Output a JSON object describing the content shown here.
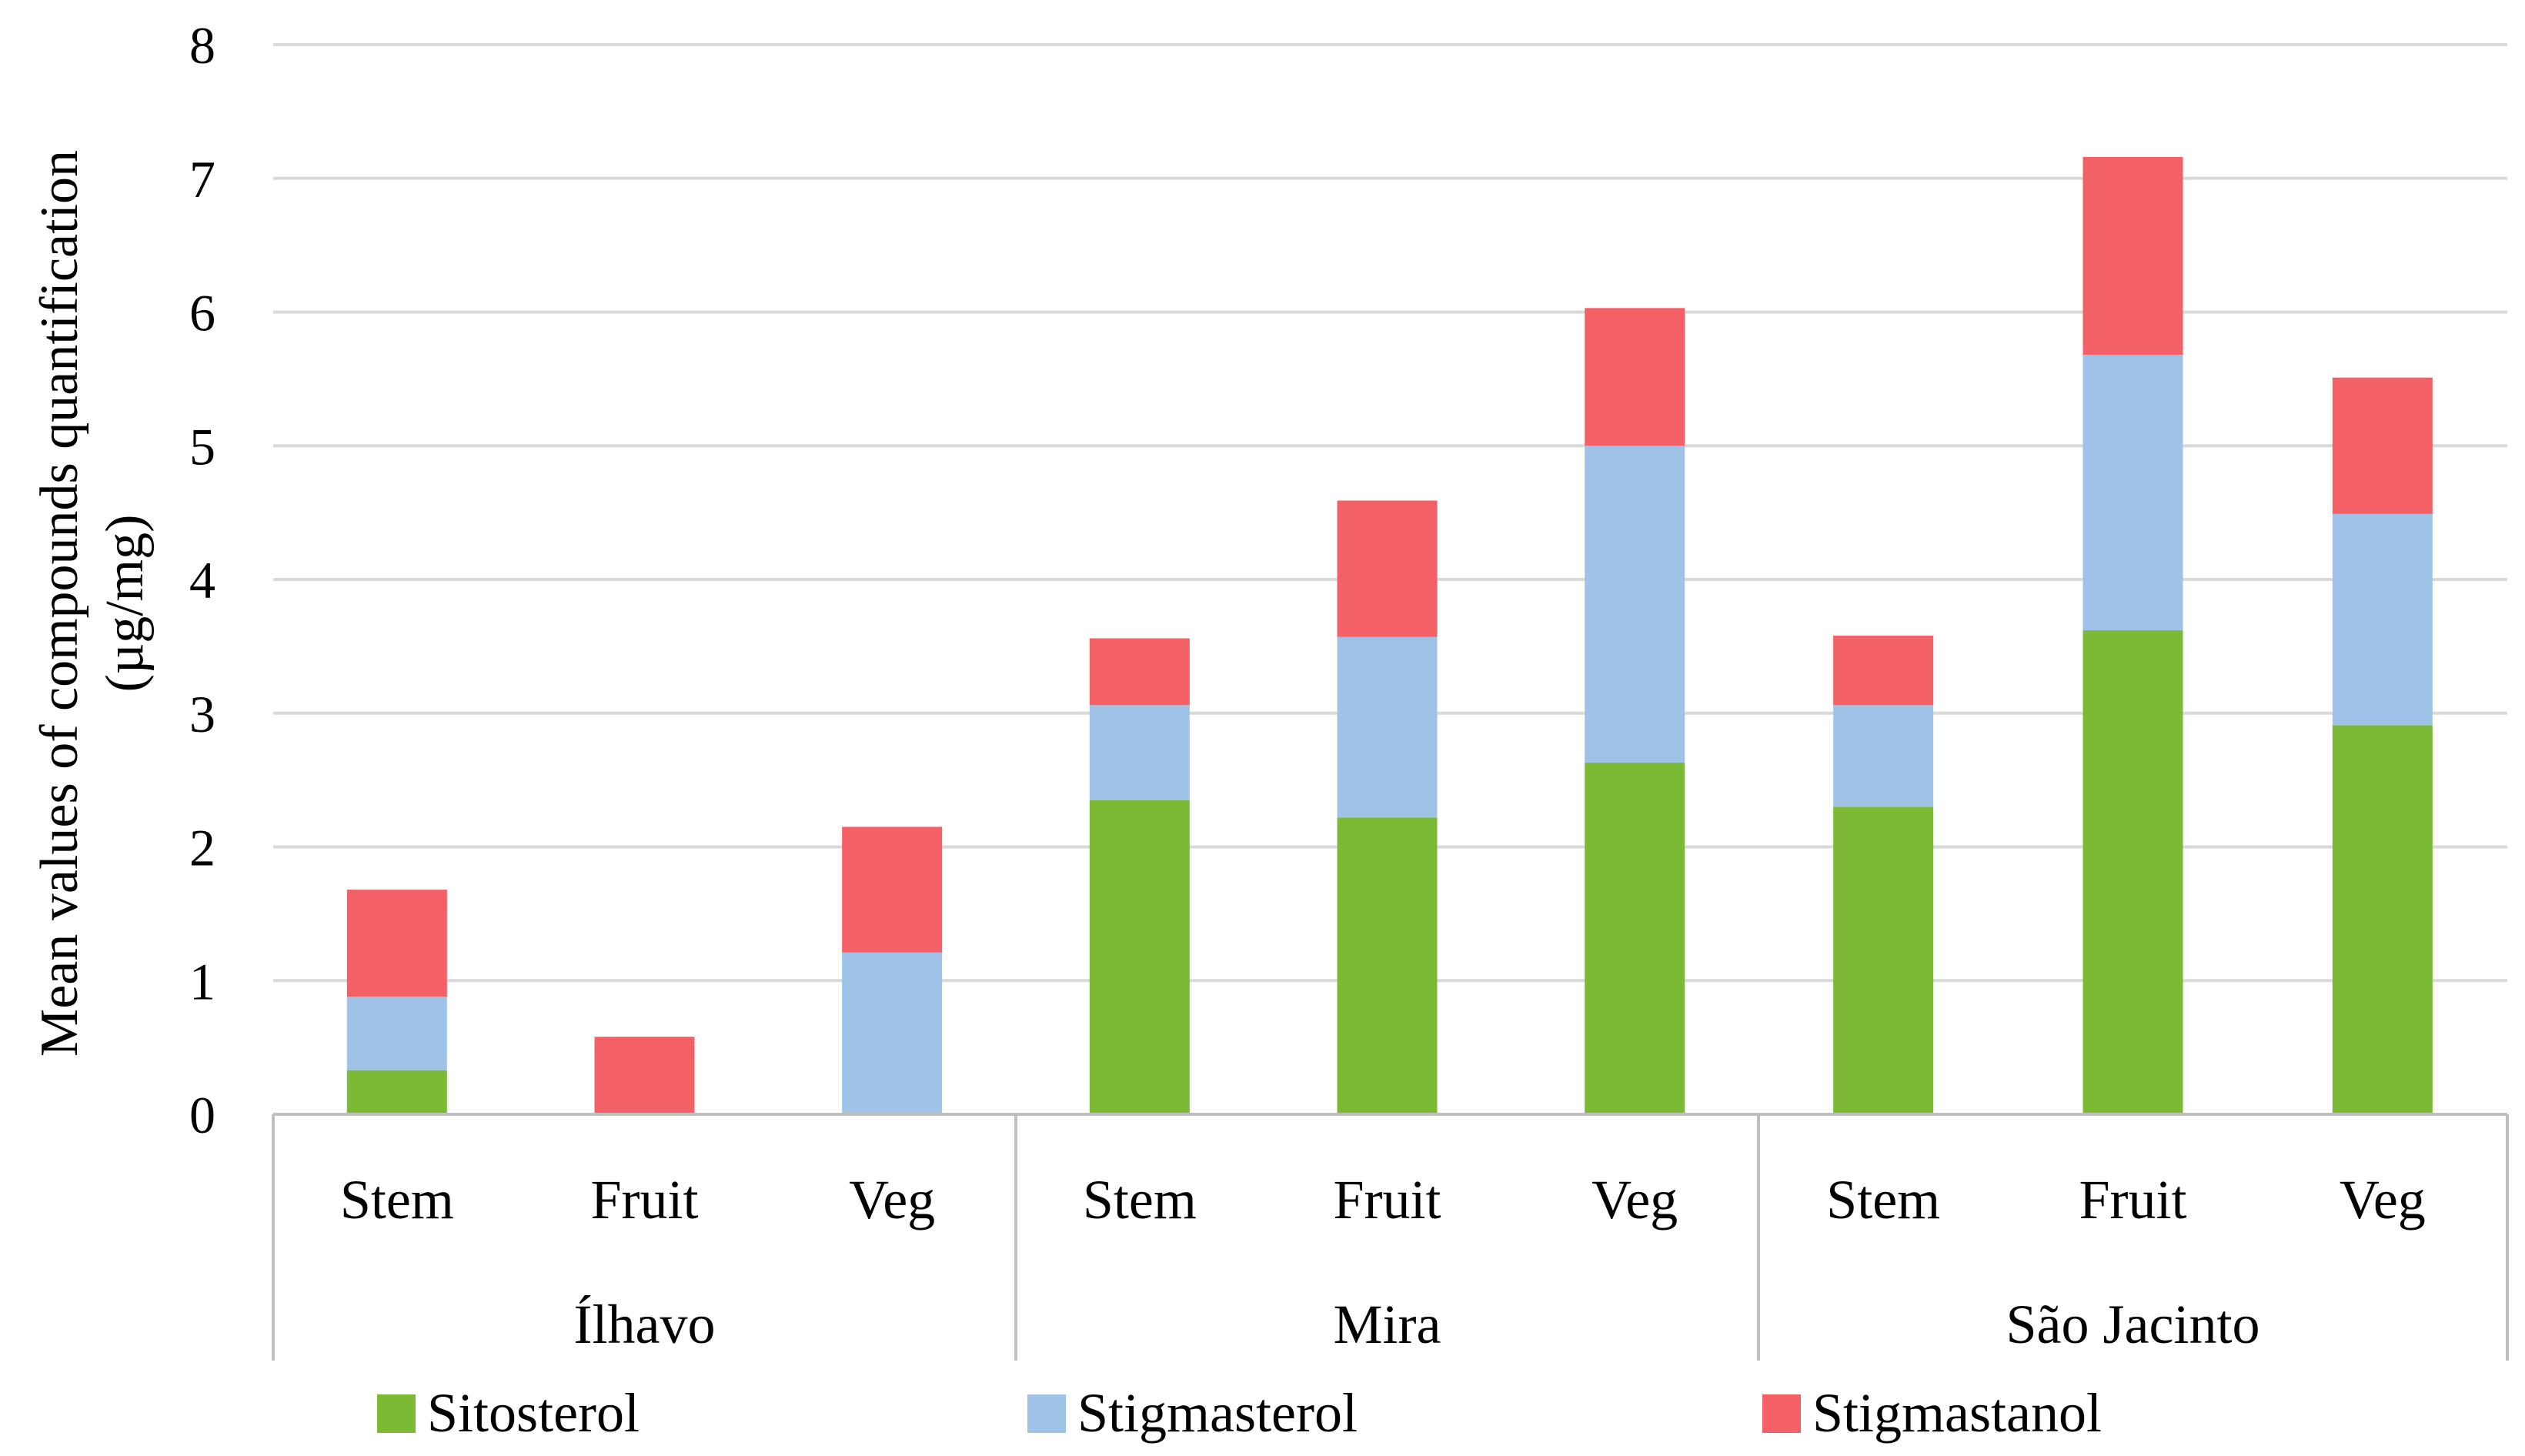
{
  "chart_data": {
    "type": "bar",
    "stacked": true,
    "title": "",
    "xlabel": "",
    "ylabel_lines": [
      "Mean values of compounds quantification",
      "(µg/mg)"
    ],
    "ylim": [
      0,
      8
    ],
    "yticks": [
      0,
      1,
      2,
      3,
      4,
      5,
      6,
      7,
      8
    ],
    "ytick_labels": [
      "0",
      "1",
      "2",
      "3",
      "4",
      "5",
      "6",
      "7",
      "8"
    ],
    "grid": true,
    "legend_position": "bottom",
    "groups": [
      {
        "name": "Ílhavo",
        "categories": [
          "Stem",
          "Fruit",
          "Veg"
        ]
      },
      {
        "name": "Mira",
        "categories": [
          "Stem",
          "Fruit",
          "Veg"
        ]
      },
      {
        "name": "São Jacinto",
        "categories": [
          "Stem",
          "Fruit",
          "Veg"
        ]
      }
    ],
    "series": [
      {
        "name": "Sitosterol",
        "color": "#7CB935",
        "values": [
          0.33,
          0.0,
          0.0,
          2.35,
          2.22,
          2.63,
          2.3,
          3.62,
          2.91
        ]
      },
      {
        "name": "Stigmasterol",
        "color": "#9FC3E7",
        "values": [
          0.55,
          0.0,
          1.21,
          0.71,
          1.35,
          2.37,
          0.76,
          2.06,
          1.58
        ]
      },
      {
        "name": "Stigmastanol",
        "color": "#F36166",
        "values": [
          0.8,
          0.58,
          0.94,
          0.5,
          1.02,
          1.03,
          0.52,
          1.48,
          1.02
        ]
      }
    ]
  },
  "colors": {
    "grid": "#d9d9d9",
    "axis": "#bfbfbf",
    "text": "#000000"
  }
}
